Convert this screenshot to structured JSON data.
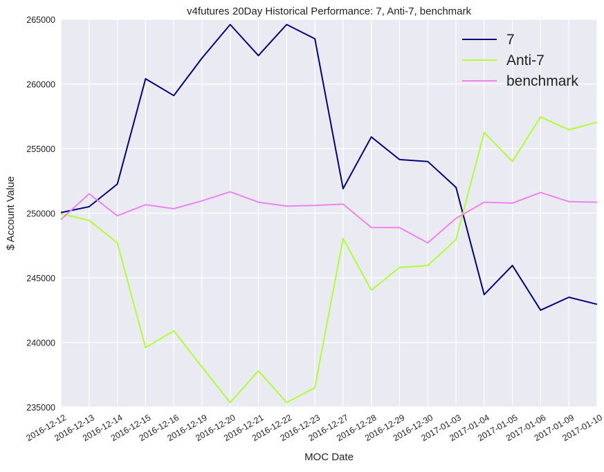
{
  "chart_data": {
    "type": "line",
    "title": "v4futures 20Day Historical Performance: 7, Anti-7, benchmark",
    "xlabel": "MOC Date",
    "ylabel": "$ Account Value",
    "categories": [
      "2016-12-12",
      "2016-12-13",
      "2016-12-14",
      "2016-12-15",
      "2016-12-16",
      "2016-12-19",
      "2016-12-20",
      "2016-12-21",
      "2016-12-22",
      "2016-12-23",
      "2016-12-27",
      "2016-12-28",
      "2016-12-29",
      "2016-12-30",
      "2017-01-03",
      "2017-01-04",
      "2017-01-05",
      "2017-01-06",
      "2017-01-09",
      "2017-01-10"
    ],
    "ylim": [
      235000,
      265000
    ],
    "yticks": [
      235000,
      240000,
      245000,
      250000,
      255000,
      260000,
      265000
    ],
    "ytick_labels": [
      "235000",
      "240000",
      "245000",
      "250000",
      "255000",
      "260000",
      "265000"
    ],
    "grid": true,
    "legend_position": "top-right",
    "series": [
      {
        "name": "7",
        "color": "#000080",
        "values": [
          250050,
          250500,
          252250,
          260400,
          259100,
          262000,
          264600,
          262200,
          264600,
          263500,
          251900,
          255900,
          254150,
          254000,
          252000,
          243700,
          245950,
          242500,
          243500,
          242950
        ]
      },
      {
        "name": "Anti-7",
        "color": "#adff2f",
        "values": [
          249950,
          249450,
          247700,
          239600,
          240900,
          238100,
          235350,
          237800,
          235350,
          236500,
          248050,
          244050,
          245800,
          245950,
          247950,
          256250,
          254000,
          257450,
          256450,
          257050
        ]
      },
      {
        "name": "benchmark",
        "color": "#ee82ee",
        "values": [
          249500,
          251500,
          249800,
          250650,
          250350,
          250950,
          251650,
          250850,
          250550,
          250600,
          250700,
          248900,
          248880,
          247700,
          249600,
          250850,
          250780,
          251600,
          250900,
          250850
        ]
      }
    ]
  },
  "colors": {
    "plot_bg": "#eaeaf2",
    "grid": "#ffffff"
  }
}
